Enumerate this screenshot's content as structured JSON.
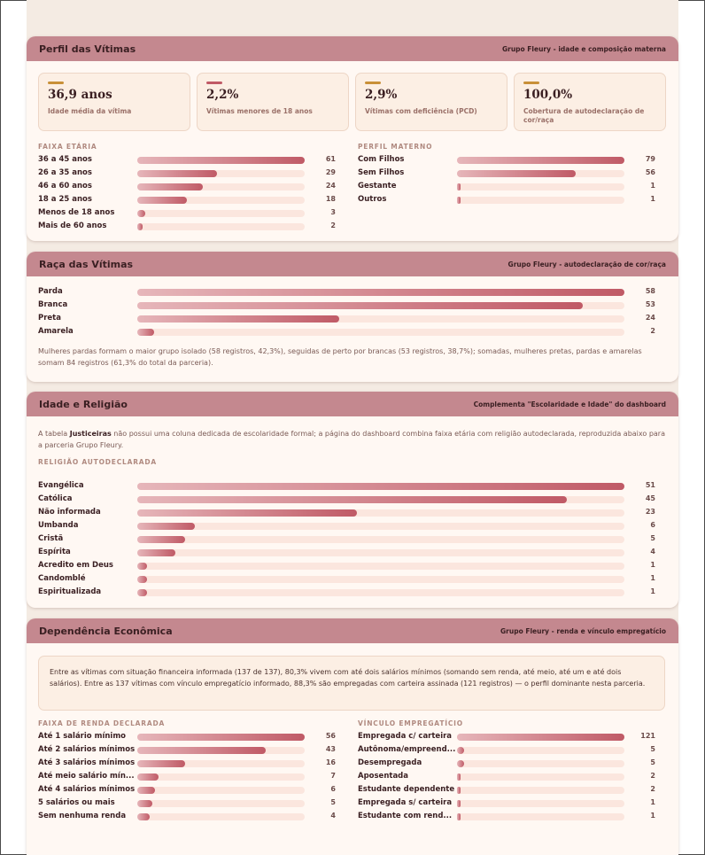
{
  "perfil": {
    "title": "Perfil das Vítimas",
    "subtitle": "Grupo Fleury - idade e composição materna",
    "kpis": [
      {
        "value": "36,9 anos",
        "label": "Idade média da vítima",
        "color": "#c89038"
      },
      {
        "value": "2,2%",
        "label": "Vítimas menores de 18 anos",
        "color": "#c05a66"
      },
      {
        "value": "2,9%",
        "label": "Vítimas com deficiência (PCD)",
        "color": "#c89038"
      },
      {
        "value": "100,0%",
        "label": "Cobertura de autodeclaração de cor/raça",
        "color": "#c89038"
      }
    ],
    "faixa_label": "FAIXA ETÁRIA",
    "faixa": [
      {
        "label": "36 a 45 anos",
        "value": 61
      },
      {
        "label": "26 a 35 anos",
        "value": 29
      },
      {
        "label": "46 a 60 anos",
        "value": 24
      },
      {
        "label": "18 a 25 anos",
        "value": 18
      },
      {
        "label": "Menos de 18 anos",
        "value": 3
      },
      {
        "label": "Mais de 60 anos",
        "value": 2
      }
    ],
    "materno_label": "PERFIL MATERNO",
    "materno": [
      {
        "label": "Com Filhos",
        "value": 79
      },
      {
        "label": "Sem Filhos",
        "value": 56
      },
      {
        "label": "Gestante",
        "value": 1
      },
      {
        "label": "Outros",
        "value": 1
      }
    ]
  },
  "raca": {
    "title": "Raça das Vítimas",
    "subtitle": "Grupo Fleury - autodeclaração de cor/raça",
    "items": [
      {
        "label": "Parda",
        "value": 58
      },
      {
        "label": "Branca",
        "value": 53
      },
      {
        "label": "Preta",
        "value": 24
      },
      {
        "label": "Amarela",
        "value": 2
      }
    ],
    "note": "Mulheres pardas formam o maior grupo isolado (58 registros, 42,3%), seguidas de perto por brancas (53 registros, 38,7%); somadas, mulheres pretas, pardas e amarelas somam 84 registros (61,3% do total da parceria)."
  },
  "idade": {
    "title": "Idade e Religião",
    "subtitle": "Complementa \"Escolaridade e Idade\" do dashboard",
    "note_pre": "A tabela ",
    "note_bold": "Justiceiras",
    "note_post": " não possui uma coluna dedicada de escolaridade formal; a página do dashboard combina faixa etária com religião autodeclarada, reproduzida abaixo para a parceria Grupo Fleury.",
    "religiao_label": "RELIGIÃO AUTODECLARADA",
    "religiao": [
      {
        "label": "Evangélica",
        "value": 51
      },
      {
        "label": "Católica",
        "value": 45
      },
      {
        "label": "Não informada",
        "value": 23
      },
      {
        "label": "Umbanda",
        "value": 6
      },
      {
        "label": "Cristã",
        "value": 5
      },
      {
        "label": "Espírita",
        "value": 4
      },
      {
        "label": "Acredito em Deus",
        "value": 1
      },
      {
        "label": "Candomblé",
        "value": 1
      },
      {
        "label": "Espiritualizada",
        "value": 1
      }
    ]
  },
  "dependencia": {
    "title": "Dependência Econômica",
    "subtitle": "Grupo Fleury - renda e vínculo empregatício",
    "callout": "Entre as vítimas com situação financeira informada (137 de 137), 80,3% vivem com até dois salários mínimos (somando sem renda, até meio, até um e até dois salários). Entre as 137 vítimas com vínculo empregatício informado, 88,3% são empregadas com carteira assinada (121 registros) — o perfil dominante nesta parceria.",
    "renda_label": "FAIXA DE RENDA DECLARADA",
    "renda": [
      {
        "label": "Até 1 salário mínimo",
        "value": 56
      },
      {
        "label": "Até 2 salários mínimos",
        "value": 43
      },
      {
        "label": "Até 3 salários mínimos",
        "value": 16
      },
      {
        "label": "Até meio salário mín...",
        "value": 7
      },
      {
        "label": "Até 4 salários mínimos",
        "value": 6
      },
      {
        "label": "5 salários ou mais",
        "value": 5
      },
      {
        "label": "Sem nenhuma renda",
        "value": 4
      }
    ],
    "vinculo_label": "VÍNCULO EMPREGATÍCIO",
    "vinculo": [
      {
        "label": "Empregada c/ carteira",
        "value": 121
      },
      {
        "label": "Autônoma/empreend...",
        "value": 5
      },
      {
        "label": "Desempregada",
        "value": 5
      },
      {
        "label": "Aposentada",
        "value": 2
      },
      {
        "label": "Estudante dependente",
        "value": 2
      },
      {
        "label": "Empregada s/ carteira",
        "value": 1
      },
      {
        "label": "Estudante com rend...",
        "value": 1
      }
    ]
  }
}
